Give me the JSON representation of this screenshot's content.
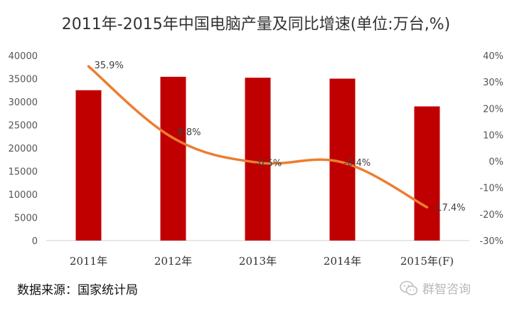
{
  "chart_data": {
    "type": "bar",
    "title": "2011年-2015年中国电脑产量及同比增速(单位:万台,%)",
    "categories": [
      "2011年",
      "2012年",
      "2013年",
      "2014年",
      "2015年(F)"
    ],
    "series": [
      {
        "name": "电脑产量",
        "type": "bar",
        "axis": "left",
        "color": "#c00000",
        "values": [
          32500,
          35400,
          35200,
          35000,
          29000
        ]
      },
      {
        "name": "同比增速",
        "type": "line",
        "axis": "right",
        "color": "#ed7d31",
        "values": [
          35.9,
          8.8,
          -0.5,
          -0.4,
          -17.4
        ],
        "labels": [
          "35.9%",
          "8.8%",
          "-0.5%",
          "-0.4%",
          "-17.4%"
        ]
      }
    ],
    "y_left": {
      "min": 0,
      "max": 40000,
      "ticks": [
        "0",
        "5000",
        "10000",
        "15000",
        "20000",
        "25000",
        "30000",
        "35000",
        "40000"
      ]
    },
    "y_right": {
      "min": -30,
      "max": 40,
      "ticks": [
        "-30%",
        "-20%",
        "-10%",
        "0%",
        "10%",
        "20%",
        "30%",
        "40%"
      ]
    },
    "grid": false,
    "legend": "none"
  },
  "footer": {
    "source": "数据来源：国家统计局",
    "watermark": "群智咨询",
    "watermark_icon": "wechat-icon"
  }
}
